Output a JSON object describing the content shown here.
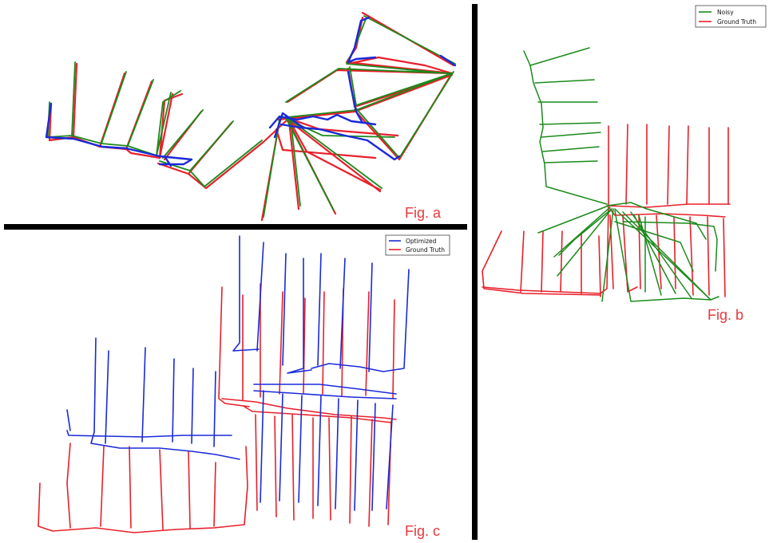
{
  "colors": {
    "ground_truth": "#e8202a",
    "noisy": "#1a8a1a",
    "optimized": "#1a2ad8",
    "label": "#e8383c"
  },
  "panels": {
    "a": {
      "label": "Fig. a"
    },
    "b": {
      "label": "Fig. b",
      "legend": [
        {
          "name": "Noisy",
          "color": "#1a8a1a"
        },
        {
          "name": "Ground Truth",
          "color": "#e8202a"
        }
      ]
    },
    "c": {
      "label": "Fig. c",
      "legend": [
        {
          "name": "Optimized",
          "color": "#1a2ad8"
        },
        {
          "name": "Ground Truth",
          "color": "#e8202a"
        }
      ]
    }
  }
}
